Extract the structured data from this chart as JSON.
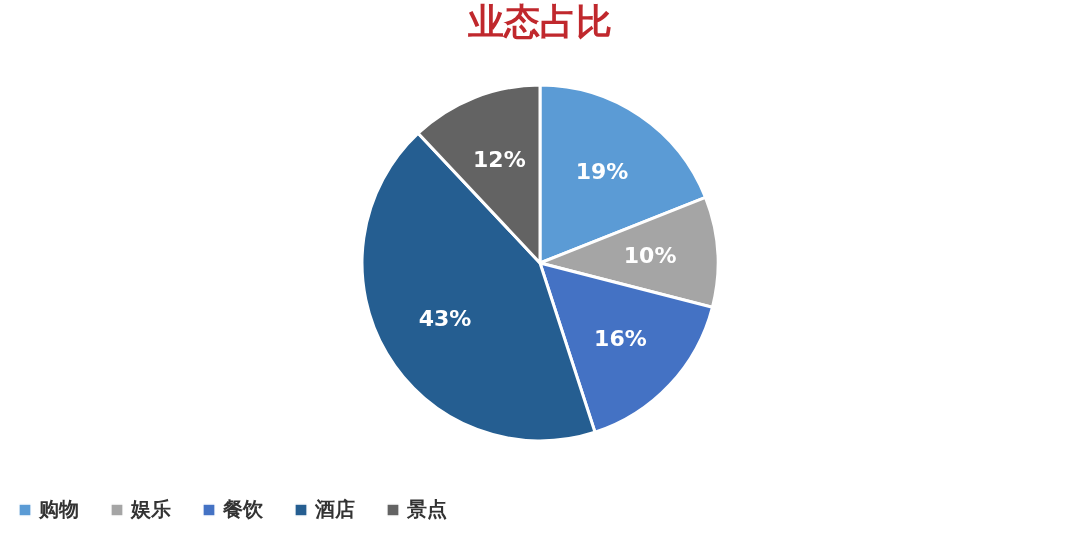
{
  "chart_data": {
    "type": "pie",
    "title": "业态占比",
    "categories": [
      "购物",
      "娱乐",
      "餐饮",
      "酒店",
      "景点"
    ],
    "values": [
      19,
      10,
      16,
      43,
      12
    ],
    "colors": [
      "#5b9bd5",
      "#a5a5a5",
      "#4472c4",
      "#255e91",
      "#636363"
    ],
    "value_labels": [
      "19%",
      "10%",
      "16%",
      "43%",
      "12%"
    ],
    "legend": "bottom"
  }
}
